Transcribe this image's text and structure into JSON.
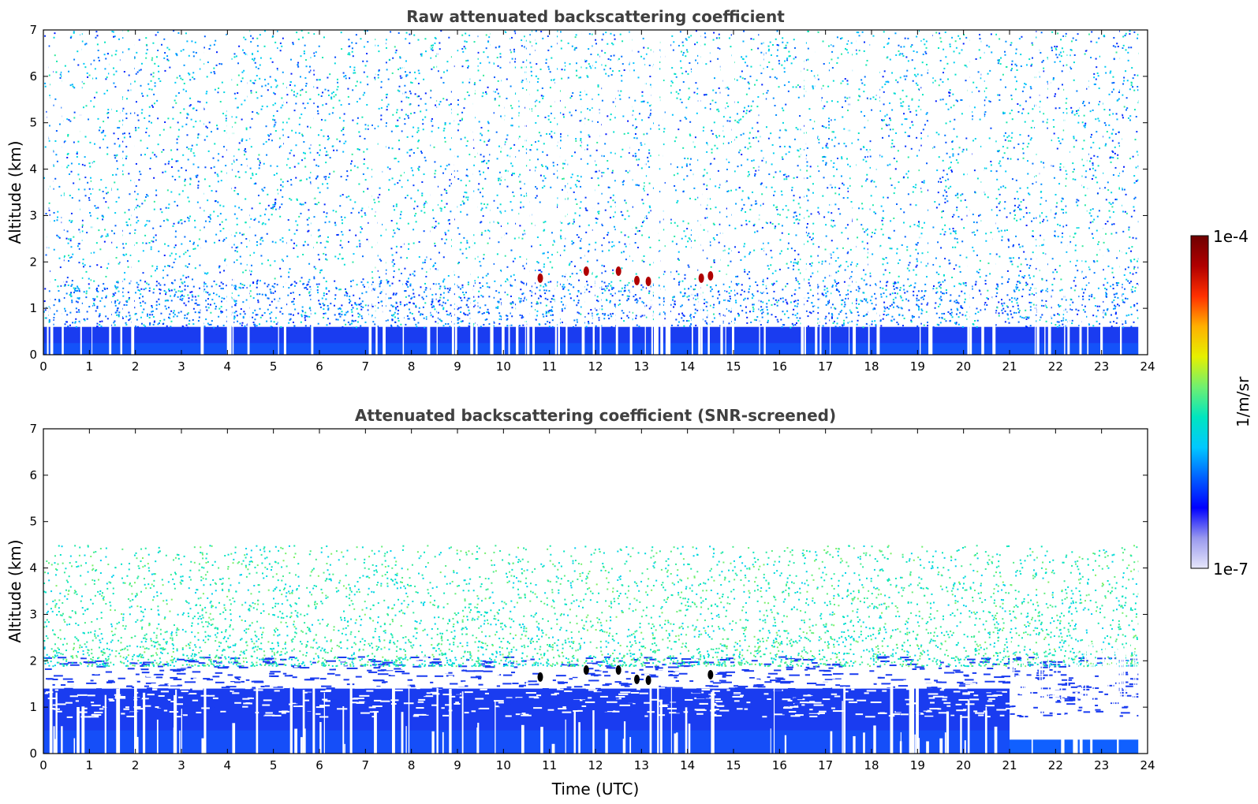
{
  "chart_data": [
    {
      "type": "heatmap",
      "title": "Raw attenuated backscattering coefficient",
      "xlabel": "",
      "ylabel": "Altitude (km)",
      "xlim": [
        0,
        24
      ],
      "ylim": [
        0,
        7
      ],
      "xticks": [
        "0",
        "1",
        "2",
        "3",
        "4",
        "5",
        "6",
        "7",
        "8",
        "9",
        "10",
        "11",
        "12",
        "13",
        "14",
        "15",
        "16",
        "17",
        "18",
        "19",
        "20",
        "21",
        "22",
        "23",
        "24"
      ],
      "yticks": [
        "0",
        "1",
        "2",
        "3",
        "4",
        "5",
        "6",
        "7"
      ],
      "data_extent_x": [
        0,
        23.8
      ],
      "structure": {
        "dense_layer_top_km": 0.6,
        "noise_throughout_km": [
          0,
          7
        ],
        "high_backscatter_features": [
          {
            "time": 10.8,
            "altitude": 1.65
          },
          {
            "time": 11.8,
            "altitude": 1.8
          },
          {
            "time": 12.5,
            "altitude": 1.8
          },
          {
            "time": 12.9,
            "altitude": 1.6
          },
          {
            "time": 13.15,
            "altitude": 1.58
          },
          {
            "time": 14.3,
            "altitude": 1.65
          },
          {
            "time": 14.5,
            "altitude": 1.7
          }
        ]
      }
    },
    {
      "type": "heatmap",
      "title": "Attenuated backscattering coefficient (SNR-screened)",
      "xlabel": "Time (UTC)",
      "ylabel": "Altitude (km)",
      "xlim": [
        0,
        24
      ],
      "ylim": [
        0,
        7
      ],
      "xticks": [
        "0",
        "1",
        "2",
        "3",
        "4",
        "5",
        "6",
        "7",
        "8",
        "9",
        "10",
        "11",
        "12",
        "13",
        "14",
        "15",
        "16",
        "17",
        "18",
        "19",
        "20",
        "21",
        "22",
        "23",
        "24"
      ],
      "yticks": [
        "0",
        "1",
        "2",
        "3",
        "4",
        "5",
        "6",
        "7"
      ],
      "data_extent_x": [
        0,
        23.8
      ],
      "structure": {
        "boundary_layer_top_km": 1.4,
        "late_day_layer_top_km": 0.3,
        "late_day_start_time": 21.0,
        "sparse_signal_top_km": 4.5,
        "high_backscatter_features": [
          {
            "time": 10.8,
            "altitude": 1.65
          },
          {
            "time": 11.8,
            "altitude": 1.8
          },
          {
            "time": 12.5,
            "altitude": 1.8
          },
          {
            "time": 12.9,
            "altitude": 1.6
          },
          {
            "time": 13.15,
            "altitude": 1.58
          },
          {
            "time": 14.5,
            "altitude": 1.7
          }
        ]
      }
    }
  ],
  "colorbar": {
    "label": "1/m/sr",
    "min_label": "1e-7",
    "max_label": "1e-4",
    "scale": "log",
    "colors": [
      "#e6e6fa",
      "#9999ee",
      "#0000ff",
      "#0060ff",
      "#00c8ff",
      "#00e5c0",
      "#70f070",
      "#e6f000",
      "#ffb000",
      "#ff3000",
      "#b00000",
      "#6e0000"
    ]
  }
}
